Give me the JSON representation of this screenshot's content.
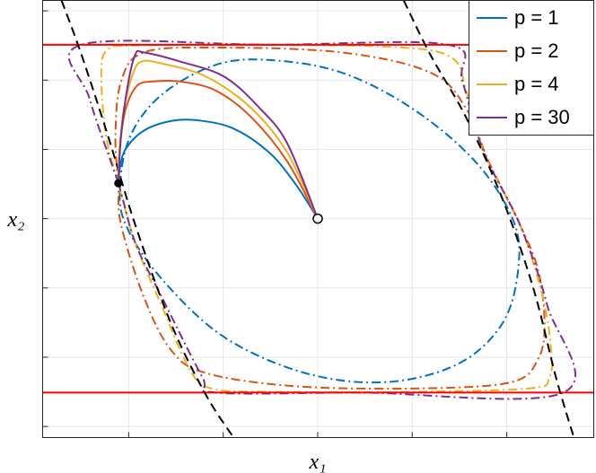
{
  "chart_data": {
    "type": "line",
    "xlabel": "x₁",
    "ylabel": "x₂",
    "xlim": [
      -2.91,
      2.92
    ],
    "ylim": [
      -3.16,
      3.15
    ],
    "xticks": [
      -2,
      -1,
      0,
      1,
      2
    ],
    "yticks": [
      -3,
      -2,
      -1,
      0,
      1,
      2,
      3
    ],
    "grid": true,
    "legend": "upper right",
    "series": [
      {
        "name": "p = 1",
        "color": "#0072bd",
        "x": [
          0,
          -0.23,
          -0.51,
          -0.89,
          -1.27,
          -1.55,
          -1.84,
          -2.03,
          -2.09,
          -2.11
        ],
        "y": [
          0,
          0.49,
          0.95,
          1.3,
          1.42,
          1.41,
          1.27,
          1.01,
          0.75,
          0.51
        ]
      },
      {
        "name": "p = 2",
        "color": "#d95319",
        "x": [
          0,
          -0.32,
          -0.7,
          -1.08,
          -1.46,
          -1.74,
          -1.91,
          -2.03,
          -2.09,
          -2.11
        ],
        "y": [
          0,
          0.82,
          1.46,
          1.85,
          1.98,
          1.98,
          1.92,
          1.59,
          1.08,
          0.51
        ]
      },
      {
        "name": "p = 4",
        "color": "#edb120",
        "x": [
          0,
          -0.32,
          -0.7,
          -1.18,
          -1.65,
          -1.86,
          -1.95,
          -2.05,
          -2.1,
          -2.11
        ],
        "y": [
          0,
          0.95,
          1.59,
          2.05,
          2.24,
          2.27,
          2.11,
          1.59,
          0.95,
          0.51
        ]
      },
      {
        "name": "p = 30",
        "color": "#7e2f8e",
        "x": [
          0,
          -0.32,
          -0.61,
          -0.99,
          -1.46,
          -1.84,
          -1.93,
          -2.01,
          -2.08,
          -2.11
        ],
        "y": [
          0,
          1.08,
          1.59,
          2.05,
          2.27,
          2.4,
          2.37,
          1.92,
          1.2,
          0.51
        ]
      }
    ],
    "level_sets": [
      {
        "color": "#0072bd",
        "x": [
          -2.09,
          -1.98,
          -1.65,
          -1.08,
          -0.51,
          0.25,
          1.0,
          1.67,
          2.07,
          2.12,
          1.95,
          1.48,
          0.72,
          -0.13,
          -0.99,
          -1.65,
          -2.03
        ],
        "y": [
          0.49,
          1.2,
          1.79,
          2.22,
          2.29,
          2.11,
          1.59,
          0.82,
          -0.03,
          -0.74,
          -1.52,
          -2.1,
          -2.36,
          -2.23,
          -1.71,
          -0.87,
          -0.09
        ]
      },
      {
        "color": "#d95319",
        "x": [
          -2.11,
          -2.14,
          -2.08,
          -1.84,
          -1.08,
          0.25,
          1.19,
          1.57,
          1.81,
          2.14,
          2.33,
          2.4,
          2.33,
          2.05,
          1.1,
          -0.23,
          -1.18,
          -1.55,
          -1.84,
          -2.08
        ],
        "y": [
          0.51,
          1.2,
          1.98,
          2.4,
          2.47,
          2.4,
          2.11,
          1.59,
          0.82,
          -0.09,
          -0.74,
          -1.52,
          -2.03,
          -2.36,
          -2.45,
          -2.42,
          -2.23,
          -1.9,
          -1.13,
          -0.09
        ]
      },
      {
        "color": "#edb120",
        "x": [
          -2.11,
          -2.24,
          -2.29,
          -2.22,
          -1.93,
          -0.51,
          0.91,
          1.43,
          1.57,
          1.76,
          2.14,
          2.38,
          2.47,
          2.45,
          2.24,
          0.91,
          -0.51,
          -1.13,
          -1.36,
          -1.65,
          -1.93
        ],
        "y": [
          0.51,
          1.2,
          2.11,
          2.44,
          2.5,
          2.51,
          2.47,
          2.31,
          1.85,
          0.95,
          -0.09,
          -1.13,
          -1.9,
          -2.29,
          -2.45,
          -2.5,
          -2.5,
          -2.45,
          -2.16,
          -1.26,
          -0.35
        ]
      },
      {
        "color": "#7e2f8e",
        "x": [
          -2.11,
          -2.41,
          -2.5,
          -0.51,
          1.38,
          1.53,
          1.76,
          2.14,
          2.43,
          2.6,
          0.44,
          -1.08,
          -1.22,
          -1.65,
          -1.93
        ],
        "y": [
          0.51,
          1.72,
          2.51,
          2.51,
          2.51,
          1.98,
          0.95,
          -0.09,
          -1.26,
          -2.51,
          -2.51,
          -2.51,
          -2.29,
          -1.13,
          -0.35
        ]
      }
    ],
    "bounds": {
      "color": "#ff0000",
      "values": [
        2.51,
        -2.51
      ]
    },
    "boundary_curves": {
      "color": "#000000",
      "curves": [
        {
          "x": [
            -2.71,
            -2.5,
            -2.22,
            -1.93,
            -1.55,
            -1.18,
            -0.89
          ],
          "y": [
            3.15,
            2.37,
            1.2,
            -0.09,
            -1.52,
            -2.55,
            -3.16
          ]
        },
        {
          "x": [
            0.91,
            1.19,
            1.57,
            1.95,
            2.28,
            2.52,
            2.71
          ],
          "y": [
            3.15,
            2.37,
            1.46,
            0.3,
            -1.0,
            -2.29,
            -3.16
          ]
        }
      ]
    },
    "start_point": {
      "x": 0,
      "y": 0
    },
    "end_point": {
      "x": -2.11,
      "y": 0.51
    }
  }
}
